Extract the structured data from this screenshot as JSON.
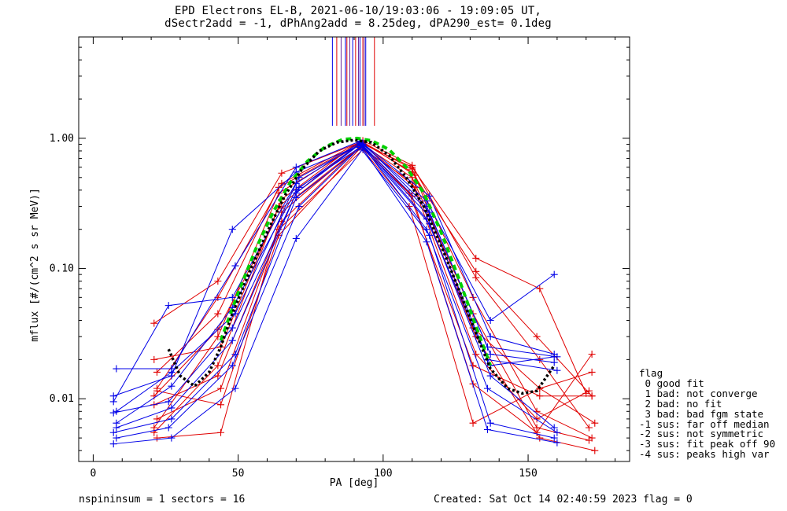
{
  "header": {
    "title_line1": "EPD Electrons EL-B, 2021-06-10/19:03:06 - 19:09:05 UT,",
    "title_line2": "dSectr2add = -1, dPhAng2add = 8.25deg, dPA290_est=   0.1deg"
  },
  "footer": {
    "left": "nspininsum =  1  sectors = 16",
    "right": "Created: Sat Oct 14 02:40:59 2023   flag = 0"
  },
  "legend": {
    "title": "flag",
    "items": [
      " 0 good fit",
      " 1 bad: not converge",
      " 2 bad: no fit",
      " 3 bad: bad fgm state",
      "-1 sus: far off median",
      "-2 sus: not symmetric",
      "-3 sus: fit peak off 90",
      "-4 sus: peaks high var"
    ]
  },
  "colors": {
    "red_series": "#e00000",
    "blue_series": "#0000e8",
    "fit_green": "#00d000",
    "median_black": "#000000",
    "peak_purple": "#6a2a9a"
  },
  "chart_data": {
    "type": "line",
    "xlabel": "PA [deg]",
    "ylabel": "mflux [#/(cm^2 s sr MeV)]",
    "xlim": [
      -5,
      185
    ],
    "ylim": [
      0.0033,
      6.0
    ],
    "yscale": "log",
    "xticks": [
      0,
      50,
      100,
      150
    ],
    "xtick_labels": [
      "0",
      "50",
      "100",
      "150"
    ],
    "yticks": [
      0.01,
      0.1,
      1.0
    ],
    "ytick_labels": [
      "0.01",
      "0.10",
      "1.00"
    ],
    "grid": false,
    "series": [
      {
        "color": "red",
        "points": [
          [
            21,
            0.038
          ],
          [
            43,
            0.08
          ],
          [
            65,
            0.54
          ],
          [
            92,
            0.93
          ],
          [
            110,
            0.6
          ],
          [
            132,
            0.12
          ],
          [
            154,
            0.07
          ],
          [
            170,
            0.011
          ]
        ]
      },
      {
        "color": "red",
        "points": [
          [
            22,
            0.012
          ],
          [
            43,
            0.06
          ],
          [
            65,
            0.45
          ],
          [
            93,
            0.96
          ],
          [
            110,
            0.62
          ],
          [
            132,
            0.085
          ],
          [
            154,
            0.02
          ],
          [
            171,
            0.006
          ]
        ]
      },
      {
        "color": "red",
        "points": [
          [
            21,
            0.006
          ],
          [
            43,
            0.03
          ],
          [
            64,
            0.38
          ],
          [
            93,
            0.93
          ],
          [
            110,
            0.58
          ],
          [
            131,
            0.06
          ],
          [
            153,
            0.008
          ],
          [
            172,
            0.005
          ]
        ]
      },
      {
        "color": "red",
        "points": [
          [
            21,
            0.0055
          ],
          [
            43,
            0.018
          ],
          [
            64,
            0.3
          ],
          [
            92,
            0.92
          ],
          [
            110,
            0.5
          ],
          [
            131,
            0.045
          ],
          [
            153,
            0.006
          ],
          [
            171,
            0.0048
          ]
        ]
      },
      {
        "color": "red",
        "points": [
          [
            22,
            0.005
          ],
          [
            44,
            0.0055
          ],
          [
            65,
            0.27
          ],
          [
            93,
            0.9
          ],
          [
            111,
            0.42
          ],
          [
            132,
            0.03
          ],
          [
            154,
            0.005
          ],
          [
            173,
            0.004
          ]
        ]
      },
      {
        "color": "red",
        "points": [
          [
            21,
            0.009
          ],
          [
            43,
            0.015
          ],
          [
            65,
            0.23
          ],
          [
            92,
            0.87
          ],
          [
            110,
            0.36
          ],
          [
            131,
            0.013
          ],
          [
            153,
            0.0055
          ],
          [
            172,
            0.022
          ]
        ]
      },
      {
        "color": "red",
        "points": [
          [
            22,
            0.007
          ],
          [
            44,
            0.012
          ],
          [
            64,
            0.2
          ],
          [
            93,
            0.82
          ],
          [
            109,
            0.3
          ],
          [
            131,
            0.0065
          ],
          [
            154,
            0.012
          ],
          [
            172,
            0.016
          ]
        ]
      },
      {
        "color": "red",
        "points": [
          [
            21,
            0.02
          ],
          [
            44,
            0.025
          ],
          [
            65,
            0.34
          ],
          [
            92,
            0.95
          ],
          [
            110,
            0.55
          ],
          [
            132,
            0.095
          ],
          [
            153,
            0.03
          ],
          [
            172,
            0.0105
          ]
        ]
      },
      {
        "color": "red",
        "points": [
          [
            22,
            0.016
          ],
          [
            43,
            0.045
          ],
          [
            64,
            0.42
          ],
          [
            93,
            0.94
          ],
          [
            111,
            0.52
          ],
          [
            131,
            0.035
          ],
          [
            154,
            0.012
          ],
          [
            173,
            0.0065
          ]
        ]
      },
      {
        "color": "red",
        "points": [
          [
            21,
            0.0105
          ],
          [
            43,
            0.034
          ],
          [
            65,
            0.29
          ],
          [
            92,
            0.86
          ],
          [
            110,
            0.46
          ],
          [
            132,
            0.022
          ],
          [
            153,
            0.007
          ],
          [
            171,
            0.0115
          ]
        ]
      },
      {
        "color": "red",
        "points": [
          [
            22,
            0.0115
          ],
          [
            44,
            0.009
          ],
          [
            64,
            0.18
          ],
          [
            93,
            0.88
          ],
          [
            109,
            0.38
          ],
          [
            131,
            0.018
          ],
          [
            154,
            0.0105
          ],
          [
            172,
            0.0105
          ]
        ]
      },
      {
        "color": "blue",
        "points": [
          [
            7,
            0.0105
          ],
          [
            27,
            0.015
          ],
          [
            48,
            0.2
          ],
          [
            70,
            0.55
          ],
          [
            93,
            0.9
          ],
          [
            115,
            0.33
          ],
          [
            137,
            0.04
          ],
          [
            159,
            0.09
          ]
        ]
      },
      {
        "color": "blue",
        "points": [
          [
            8,
            0.017
          ],
          [
            27,
            0.017
          ],
          [
            49,
            0.105
          ],
          [
            70,
            0.6
          ],
          [
            92,
            0.95
          ],
          [
            116,
            0.36
          ],
          [
            137,
            0.03
          ],
          [
            159,
            0.022
          ]
        ]
      },
      {
        "color": "blue",
        "points": [
          [
            7,
            0.0095
          ],
          [
            26,
            0.052
          ],
          [
            48,
            0.06
          ],
          [
            71,
            0.5
          ],
          [
            93,
            0.92
          ],
          [
            115,
            0.3
          ],
          [
            136,
            0.025
          ],
          [
            160,
            0.021
          ]
        ]
      },
      {
        "color": "blue",
        "points": [
          [
            8,
            0.008
          ],
          [
            27,
            0.016
          ],
          [
            49,
            0.045
          ],
          [
            70,
            0.45
          ],
          [
            92,
            0.93
          ],
          [
            116,
            0.27
          ],
          [
            137,
            0.022
          ],
          [
            159,
            0.019
          ]
        ]
      },
      {
        "color": "blue",
        "points": [
          [
            7,
            0.0078
          ],
          [
            26,
            0.0095
          ],
          [
            48,
            0.035
          ],
          [
            71,
            0.42
          ],
          [
            93,
            0.88
          ],
          [
            115,
            0.24
          ],
          [
            136,
            0.02
          ],
          [
            160,
            0.0165
          ]
        ]
      },
      {
        "color": "blue",
        "points": [
          [
            8,
            0.006
          ],
          [
            27,
            0.0085
          ],
          [
            48,
            0.028
          ],
          [
            70,
            0.38
          ],
          [
            92,
            0.9
          ],
          [
            116,
            0.22
          ],
          [
            137,
            0.015
          ],
          [
            159,
            0.006
          ]
        ]
      },
      {
        "color": "blue",
        "points": [
          [
            7,
            0.0055
          ],
          [
            27,
            0.007
          ],
          [
            49,
            0.022
          ],
          [
            70,
            0.35
          ],
          [
            93,
            0.87
          ],
          [
            115,
            0.2
          ],
          [
            136,
            0.012
          ],
          [
            160,
            0.0055
          ]
        ]
      },
      {
        "color": "blue",
        "points": [
          [
            8,
            0.005
          ],
          [
            26,
            0.006
          ],
          [
            48,
            0.018
          ],
          [
            71,
            0.3
          ],
          [
            92,
            0.85
          ],
          [
            116,
            0.18
          ],
          [
            137,
            0.0065
          ],
          [
            159,
            0.005
          ]
        ]
      },
      {
        "color": "blue",
        "points": [
          [
            7,
            0.0045
          ],
          [
            27,
            0.005
          ],
          [
            49,
            0.012
          ],
          [
            70,
            0.17
          ],
          [
            93,
            0.83
          ],
          [
            115,
            0.16
          ],
          [
            136,
            0.0058
          ],
          [
            160,
            0.0046
          ]
        ]
      },
      {
        "color": "blue",
        "points": [
          [
            8,
            0.0065
          ],
          [
            27,
            0.0125
          ],
          [
            48,
            0.05
          ],
          [
            70,
            0.4
          ],
          [
            92,
            0.91
          ],
          [
            116,
            0.25
          ],
          [
            137,
            0.018
          ],
          [
            159,
            0.021
          ]
        ]
      }
    ],
    "fit_curve": {
      "color": "green",
      "style": "dashed",
      "x": [
        44,
        50,
        56,
        62,
        68,
        74,
        80,
        86,
        91,
        96,
        102,
        108,
        114,
        120,
        126,
        132,
        137
      ],
      "y": [
        0.028,
        0.065,
        0.14,
        0.27,
        0.46,
        0.67,
        0.86,
        0.98,
        1.0,
        0.96,
        0.82,
        0.6,
        0.38,
        0.19,
        0.085,
        0.036,
        0.018
      ]
    },
    "median_curve": {
      "color": "black",
      "style": "dotted",
      "x": [
        26,
        30,
        35,
        40,
        44,
        48,
        54,
        60,
        66,
        72,
        78,
        84,
        90,
        96,
        102,
        108,
        114,
        120,
        126,
        132,
        137,
        143,
        148,
        153,
        159
      ],
      "y": [
        0.024,
        0.015,
        0.0125,
        0.016,
        0.025,
        0.045,
        0.095,
        0.19,
        0.36,
        0.58,
        0.8,
        0.93,
        0.97,
        0.93,
        0.74,
        0.5,
        0.3,
        0.15,
        0.07,
        0.032,
        0.017,
        0.012,
        0.011,
        0.0115,
        0.018
      ]
    },
    "peak_markers": {
      "x": [
        82.5,
        84,
        85.5,
        87,
        87.5,
        88.5,
        89.5,
        90.5,
        91.5,
        92,
        93,
        93.5,
        94,
        97
      ]
    }
  }
}
